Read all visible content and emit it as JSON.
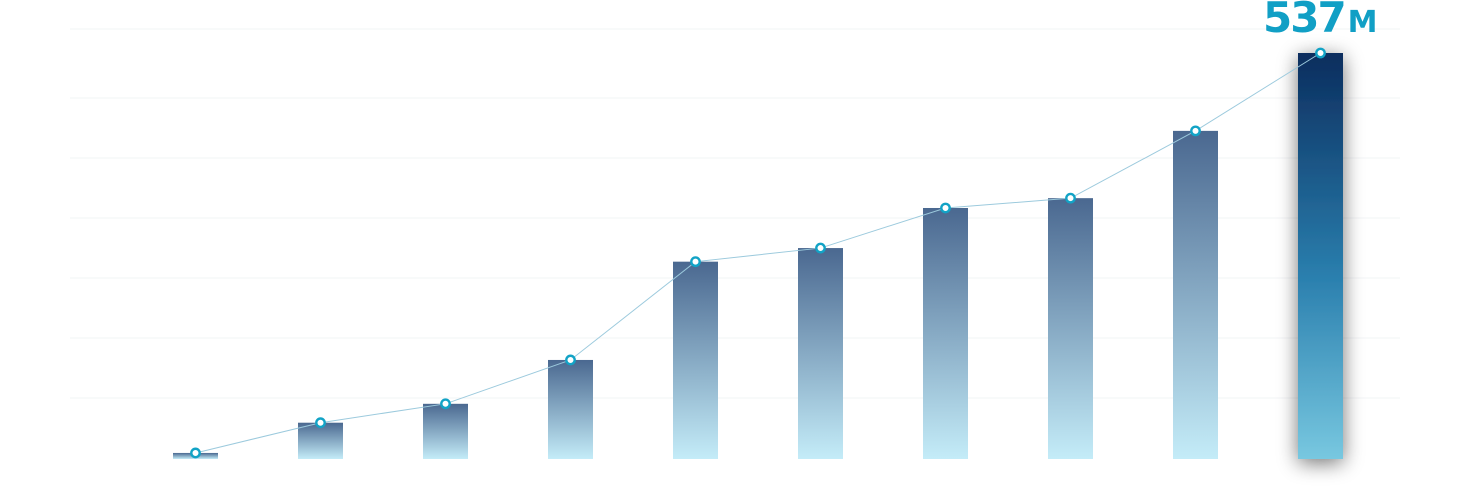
{
  "chart_data": {
    "type": "bar",
    "series": [
      {
        "values": [
          8,
          48,
          73,
          131,
          261,
          279,
          332,
          345,
          434,
          537
        ]
      }
    ],
    "ylim": [
      0,
      537
    ],
    "grid": true,
    "legend": "none",
    "annotations": [
      {
        "index": 9,
        "value_text": "537",
        "unit_text": "M"
      }
    ],
    "colors": {
      "bar_top": "#4a6890",
      "bar_bottom": "#c4ecf8",
      "highlight_top": "#0b2d5e",
      "highlight_mid": "#2a7fae",
      "highlight_bottom": "#78c8e0",
      "line": "#9ccadd",
      "marker": "#12a3c6",
      "label": "#119fc5",
      "grid": "#f2f4f6"
    }
  }
}
